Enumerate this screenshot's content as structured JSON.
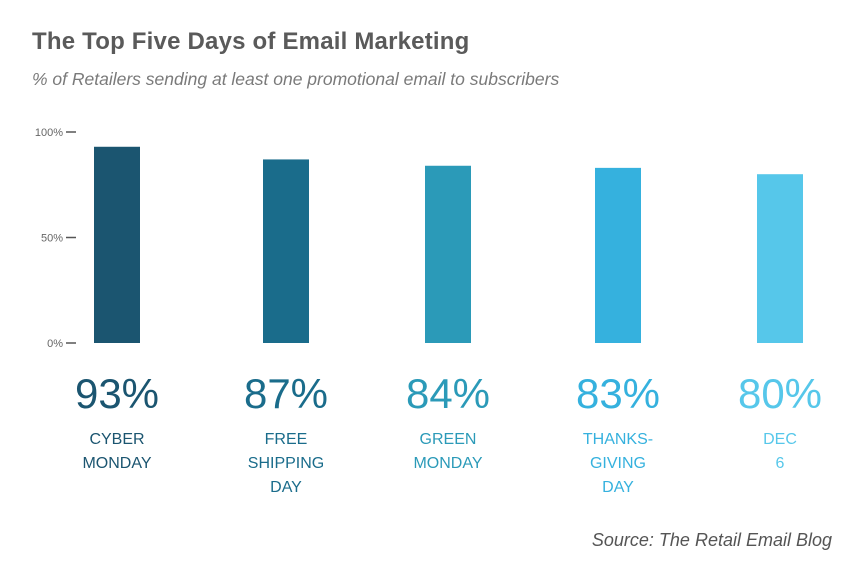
{
  "chart_data": {
    "type": "bar",
    "title": "The Top Five Days of Email Marketing",
    "subtitle": "% of Retailers sending at least one promotional email to subscribers",
    "categories": [
      [
        "CYBER",
        "MONDAY"
      ],
      [
        "FREE",
        "SHIPPING",
        "DAY"
      ],
      [
        "GREEN",
        "MONDAY"
      ],
      [
        "THANKS-",
        "GIVING",
        "DAY"
      ],
      [
        "DEC",
        "6"
      ]
    ],
    "values": [
      93,
      87,
      84,
      83,
      80
    ],
    "value_labels": [
      "93%",
      "87%",
      "84%",
      "83%",
      "80%"
    ],
    "bar_colors": [
      "#1b5570",
      "#1a6c8b",
      "#2b9ab8",
      "#35b1de",
      "#56c7ea"
    ],
    "yticks": [
      "100%",
      "50%",
      "0%"
    ],
    "ytick_values": [
      100,
      50,
      0
    ],
    "ylim": [
      0,
      100
    ],
    "source": "Source: The Retail Email Blog"
  }
}
